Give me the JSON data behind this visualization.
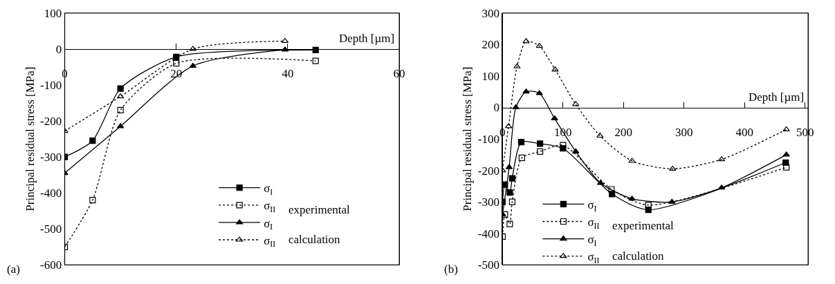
{
  "chart_data": [
    {
      "type": "line",
      "annotations": [
        "(a)",
        "experimental",
        "calculation"
      ],
      "xlabel": "Depth [µm]",
      "ylabel": "Principal residual stress [MPa]",
      "xlim": [
        0,
        60
      ],
      "xticks": [
        0,
        20,
        40,
        60
      ],
      "ylim": [
        -600,
        100
      ],
      "yticks": [
        -600,
        -500,
        -400,
        -300,
        -200,
        -100,
        0,
        100
      ],
      "legend": "bottom right",
      "series": [
        {
          "name": "σ$_{I}$",
          "color": "#000000",
          "marker": "square",
          "line_style": "solid",
          "x": [
            0,
            5,
            10,
            20,
            45
          ],
          "values": [
            -300,
            -255,
            -110,
            -22,
            -3
          ]
        },
        {
          "name": "σ$_{II}$",
          "color": "#000000",
          "marker": "square-open",
          "line_style": "dotted",
          "x": [
            0,
            5,
            10,
            20,
            45
          ],
          "values": [
            -550,
            -420,
            -170,
            -40,
            -33
          ]
        },
        {
          "name": "σ$_{I}$",
          "color": "#000000",
          "marker": "triangle",
          "line_style": "solid",
          "x": [
            0,
            10,
            23,
            39.5
          ],
          "values": [
            -345,
            -215,
            -47,
            -2
          ]
        },
        {
          "name": "σ$_{II}$",
          "color": "#000000",
          "marker": "triangle-open",
          "line_style": "dotted",
          "x": [
            0,
            10,
            23,
            39.5
          ],
          "values": [
            -228,
            -132,
            0,
            22
          ]
        }
      ]
    },
    {
      "type": "line",
      "annotations": [
        "(b)",
        "experimental",
        "calculation"
      ],
      "xlabel": "Depth [µm]",
      "ylabel": "Principal residual stress [MPa]",
      "xlim": [
        0,
        505
      ],
      "xticks": [
        0,
        100,
        200,
        300,
        400,
        500
      ],
      "ylim": [
        -500,
        300
      ],
      "yticks": [
        -500,
        -400,
        -300,
        -200,
        -100,
        0,
        100,
        200,
        300
      ],
      "legend": "bottom left",
      "series": [
        {
          "name": "σ$_{I}$",
          "color": "#000000",
          "marker": "square",
          "line_style": "solid",
          "x": [
            0,
            4,
            12,
            16,
            31,
            62,
            100,
            181,
            241,
            468
          ],
          "values": [
            -300,
            -245,
            -270,
            -225,
            -110,
            -115,
            -130,
            -275,
            -325,
            -175
          ]
        },
        {
          "name": "σ$_{II}$",
          "color": "#000000",
          "marker": "square-open",
          "line_style": "dotted",
          "x": [
            0,
            4,
            12,
            16,
            32,
            62,
            100,
            180,
            241,
            469
          ],
          "values": [
            -410,
            -340,
            -370,
            -300,
            -160,
            -140,
            -120,
            -260,
            -310,
            -190
          ]
        },
        {
          "name": "σ$_{I}$",
          "color": "#000000",
          "marker": "triangle",
          "line_style": "solid",
          "x": [
            0,
            11,
            22,
            39,
            61,
            86,
            121,
            162,
            214,
            280,
            362,
            469
          ],
          "values": [
            -340,
            -190,
            0,
            50,
            45,
            -35,
            -140,
            -240,
            -290,
            -300,
            -255,
            -150
          ]
        },
        {
          "name": "σ$_{II}$",
          "color": "#000000",
          "marker": "triangle-open",
          "line_style": "dotted",
          "x": [
            0,
            10,
            24,
            39,
            61,
            87,
            121,
            161,
            214,
            281,
            362,
            469
          ],
          "values": [
            -200,
            -60,
            130,
            210,
            195,
            120,
            10,
            -90,
            -170,
            -195,
            -165,
            -70
          ]
        }
      ]
    }
  ]
}
